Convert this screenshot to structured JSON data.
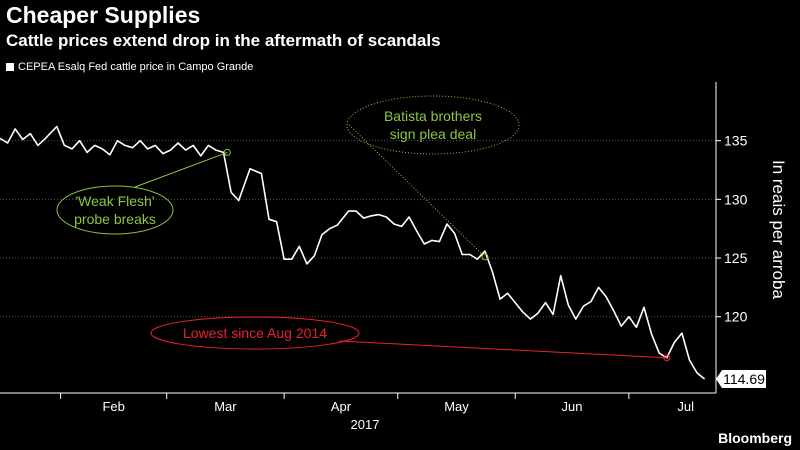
{
  "header": {
    "title": "Cheaper Supplies",
    "subtitle": "Cattle prices extend drop in the aftermath of scandals"
  },
  "footer": {
    "brand": "Bloomberg"
  },
  "colors": {
    "background": "#000000",
    "line": "#ffffff",
    "grid": "#555555",
    "annotation_green": "#8dc63f",
    "annotation_red": "#e8212f"
  },
  "chart_data": {
    "type": "line",
    "title": "Cheaper Supplies",
    "subtitle": "Cattle prices extend drop in the aftermath of scandals",
    "xlabel": "2017",
    "ylabel": "In reais per arroba",
    "ylim": [
      113.5,
      140
    ],
    "yticks": [
      120,
      125,
      130,
      135
    ],
    "grid": true,
    "legend_position": "top-left",
    "last_value_label": "114.69",
    "x_tick_labels": [
      {
        "label": "Feb",
        "date": "2017-02-01"
      },
      {
        "label": "Mar",
        "date": "2017-03-01"
      },
      {
        "label": "Apr",
        "date": "2017-04-01"
      },
      {
        "label": "May",
        "date": "2017-05-01"
      },
      {
        "label": "Jun",
        "date": "2017-06-01"
      },
      {
        "label": "Jul",
        "date": "2017-07-01"
      }
    ],
    "x_range": [
      "2017-01-16",
      "2017-07-24"
    ],
    "series": [
      {
        "name": "CEPEA Esalq Fed cattle price in Campo Grande",
        "points": [
          [
            "2017-01-16",
            135.2
          ],
          [
            "2017-01-18",
            134.8
          ],
          [
            "2017-01-20",
            136.0
          ],
          [
            "2017-01-22",
            135.1
          ],
          [
            "2017-01-24",
            135.6
          ],
          [
            "2017-01-26",
            134.6
          ],
          [
            "2017-01-28",
            135.2
          ],
          [
            "2017-01-31",
            136.2
          ],
          [
            "2017-02-02",
            134.6
          ],
          [
            "2017-02-04",
            134.3
          ],
          [
            "2017-02-06",
            135.0
          ],
          [
            "2017-02-08",
            134.0
          ],
          [
            "2017-02-10",
            134.6
          ],
          [
            "2017-02-12",
            134.3
          ],
          [
            "2017-02-14",
            133.8
          ],
          [
            "2017-02-16",
            135.0
          ],
          [
            "2017-02-18",
            134.6
          ],
          [
            "2017-02-20",
            134.4
          ],
          [
            "2017-02-22",
            135.0
          ],
          [
            "2017-02-24",
            134.3
          ],
          [
            "2017-02-26",
            134.6
          ],
          [
            "2017-02-28",
            133.9
          ],
          [
            "2017-03-02",
            134.2
          ],
          [
            "2017-03-04",
            134.8
          ],
          [
            "2017-03-06",
            134.2
          ],
          [
            "2017-03-08",
            134.6
          ],
          [
            "2017-03-10",
            133.7
          ],
          [
            "2017-03-12",
            134.6
          ],
          [
            "2017-03-14",
            134.2
          ],
          [
            "2017-03-16",
            134.0
          ],
          [
            "2017-03-18",
            130.6
          ],
          [
            "2017-03-20",
            129.9
          ],
          [
            "2017-03-23",
            132.6
          ],
          [
            "2017-03-26",
            132.2
          ],
          [
            "2017-03-28",
            128.3
          ],
          [
            "2017-03-30",
            128.1
          ],
          [
            "2017-04-01",
            124.9
          ],
          [
            "2017-04-03",
            124.9
          ],
          [
            "2017-04-05",
            126.0
          ],
          [
            "2017-04-07",
            124.5
          ],
          [
            "2017-04-09",
            125.2
          ],
          [
            "2017-04-11",
            127.0
          ],
          [
            "2017-04-13",
            127.5
          ],
          [
            "2017-04-15",
            127.8
          ],
          [
            "2017-04-18",
            129.0
          ],
          [
            "2017-04-20",
            129.0
          ],
          [
            "2017-04-22",
            128.4
          ],
          [
            "2017-04-24",
            128.6
          ],
          [
            "2017-04-26",
            128.7
          ],
          [
            "2017-04-28",
            128.5
          ],
          [
            "2017-04-30",
            127.9
          ],
          [
            "2017-05-02",
            127.7
          ],
          [
            "2017-05-04",
            128.5
          ],
          [
            "2017-05-06",
            127.3
          ],
          [
            "2017-05-08",
            126.2
          ],
          [
            "2017-05-10",
            126.5
          ],
          [
            "2017-05-12",
            126.4
          ],
          [
            "2017-05-14",
            127.9
          ],
          [
            "2017-05-16",
            127.1
          ],
          [
            "2017-05-18",
            125.3
          ],
          [
            "2017-05-20",
            125.3
          ],
          [
            "2017-05-22",
            124.9
          ],
          [
            "2017-05-24",
            125.6
          ],
          [
            "2017-05-26",
            123.8
          ],
          [
            "2017-05-28",
            121.5
          ],
          [
            "2017-05-30",
            122.0
          ],
          [
            "2017-06-01",
            121.2
          ],
          [
            "2017-06-03",
            120.4
          ],
          [
            "2017-06-05",
            119.8
          ],
          [
            "2017-06-07",
            120.3
          ],
          [
            "2017-06-09",
            121.2
          ],
          [
            "2017-06-11",
            120.2
          ],
          [
            "2017-06-13",
            123.5
          ],
          [
            "2017-06-15",
            121.0
          ],
          [
            "2017-06-17",
            119.8
          ],
          [
            "2017-06-19",
            120.9
          ],
          [
            "2017-06-21",
            121.3
          ],
          [
            "2017-06-23",
            122.5
          ],
          [
            "2017-06-25",
            121.7
          ],
          [
            "2017-06-27",
            120.5
          ],
          [
            "2017-06-29",
            119.2
          ],
          [
            "2017-07-01",
            120.0
          ],
          [
            "2017-07-03",
            119.1
          ],
          [
            "2017-07-05",
            120.8
          ],
          [
            "2017-07-07",
            118.5
          ],
          [
            "2017-07-09",
            116.9
          ],
          [
            "2017-07-11",
            116.5
          ],
          [
            "2017-07-13",
            117.8
          ],
          [
            "2017-07-15",
            118.6
          ],
          [
            "2017-07-17",
            116.3
          ],
          [
            "2017-07-19",
            115.2
          ],
          [
            "2017-07-21",
            114.69
          ]
        ]
      }
    ],
    "annotations": [
      {
        "text_lines": [
          "'Weak Flesh'",
          "probe breaks"
        ],
        "date": "2017-03-17",
        "value": 134.0,
        "color": "#8dc63f"
      },
      {
        "text_lines": [
          "Batista brothers",
          "sign plea deal"
        ],
        "date": "2017-05-24",
        "value": 125.1,
        "color": "#8dc63f"
      },
      {
        "text_lines": [
          "Lowest since Aug 2014"
        ],
        "date": "2017-07-11",
        "value": 116.5,
        "color": "#e8212f"
      }
    ]
  }
}
